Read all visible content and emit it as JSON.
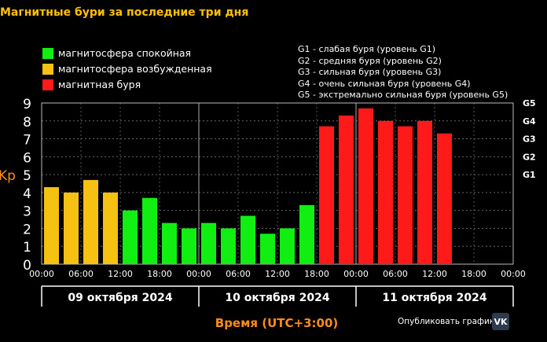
{
  "title": "Магнитные бури за последние три дня",
  "legend": [
    {
      "label": "магнитосфера спокойная",
      "color": "#11ee11"
    },
    {
      "label": "магнитосфера возбужденная",
      "color": "#f5c211"
    },
    {
      "label": "магнитная буря",
      "color": "#ff1a1a"
    }
  ],
  "g_levels": [
    "G1 - слабая буря (уровень G1)",
    "G2 - средняя буря (уровень G2)",
    "G3 - сильная буря (уровень G3)",
    "G4 - очень сильная буря (уровень G4)",
    "G5 - экстремально сильная буря (уровень G5)"
  ],
  "share_label": "Опубликовать график:",
  "vk_icon": "vk-icon",
  "chart_data": {
    "type": "bar",
    "ylabel": "Kp",
    "xlabel": "Время (UTC+3:00)",
    "ylim": [
      0,
      9
    ],
    "yticks": [
      "0",
      "1",
      "2",
      "3",
      "4",
      "5",
      "6",
      "7",
      "8",
      "9"
    ],
    "right_ticks": [
      {
        "label": "G1",
        "value": 5
      },
      {
        "label": "G2",
        "value": 6
      },
      {
        "label": "G3",
        "value": 7
      },
      {
        "label": "G4",
        "value": 8
      },
      {
        "label": "G5",
        "value": 9
      }
    ],
    "time_labels": [
      "00:00",
      "06:00",
      "12:00",
      "18:00",
      "00:00",
      "06:00",
      "12:00",
      "18:00",
      "00:00",
      "06:00",
      "12:00",
      "18:00",
      "00:00"
    ],
    "days": [
      "09 октября 2024",
      "10 октября 2024",
      "11 октября 2024"
    ],
    "values": [
      4.3,
      4.0,
      4.7,
      4.0,
      3.0,
      3.7,
      2.3,
      2.0,
      2.3,
      2.0,
      2.7,
      1.7,
      2.0,
      3.3,
      7.7,
      8.3,
      8.7,
      8.0,
      7.7,
      8.0,
      7.3
    ],
    "colors": [
      "#f5c211",
      "#f5c211",
      "#f5c211",
      "#f5c211",
      "#11ee11",
      "#11ee11",
      "#11ee11",
      "#11ee11",
      "#11ee11",
      "#11ee11",
      "#11ee11",
      "#11ee11",
      "#11ee11",
      "#11ee11",
      "#ff1a1a",
      "#ff1a1a",
      "#ff1a1a",
      "#ff1a1a",
      "#ff1a1a",
      "#ff1a1a",
      "#ff1a1a"
    ],
    "grid": true
  }
}
